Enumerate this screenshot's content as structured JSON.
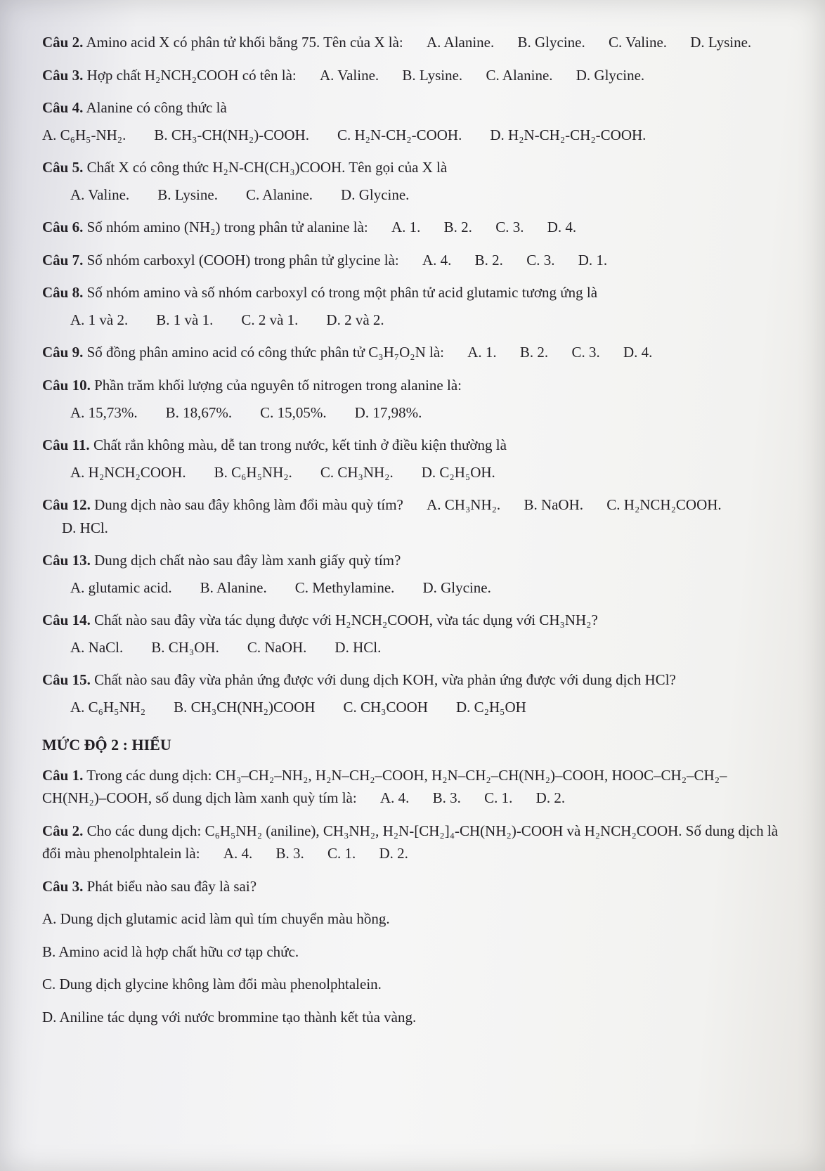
{
  "page": {
    "background_color": "#f6f6f6",
    "text_color": "#221f24",
    "font_family": "Times New Roman",
    "base_font_size_pt": 16
  },
  "q2": {
    "lead": "Câu 2.",
    "text": "Amino acid X có phân tử khối bằng 75. Tên của X là:",
    "A": "A. Alanine.",
    "B": "B. Glycine.",
    "C": "C. Valine.",
    "D": "D. Lysine."
  },
  "q3": {
    "lead": "Câu 3.",
    "text": "Hợp chất H₂NCH₂COOH có tên là:",
    "A": "A. Valine.",
    "B": "B. Lysine.",
    "C": "C. Alanine.",
    "D": "D. Glycine."
  },
  "q4": {
    "lead": "Câu 4.",
    "text": "Alanine có công thức là",
    "A": "A. C₆H₅-NH₂.",
    "B": "B. CH₃-CH(NH₂)-COOH.",
    "C": "C. H₂N-CH₂-COOH.",
    "D": "D. H₂N-CH₂-CH₂-COOH."
  },
  "q5": {
    "lead": "Câu 5.",
    "text": "Chất X có công thức H₂N-CH(CH₃)COOH. Tên gọi của X là",
    "A": "A. Valine.",
    "B": "B. Lysine.",
    "C": "C. Alanine.",
    "D": "D. Glycine."
  },
  "q6": {
    "lead": "Câu 6.",
    "text": "Số nhóm amino (NH₂) trong phân tử alanine là:",
    "A": "A. 1.",
    "B": "B. 2.",
    "C": "C. 3.",
    "D": "D. 4."
  },
  "q7": {
    "lead": "Câu 7.",
    "text": "Số nhóm carboxyl (COOH) trong phân tử glycine là:",
    "A": "A. 4.",
    "B": "B. 2.",
    "C": "C. 3.",
    "D": "D. 1."
  },
  "q8": {
    "lead": "Câu 8.",
    "text": "Số nhóm amino và số nhóm carboxyl có trong một phân tử acid glutamic tương ứng là",
    "A": "A. 1 và 2.",
    "B": "B. 1 và 1.",
    "C": "C. 2 và 1.",
    "D": "D. 2 và 2."
  },
  "q9": {
    "lead": "Câu 9.",
    "text": "Số đồng phân amino acid có công thức phân tử C₃H₇O₂N là:",
    "A": "A. 1.",
    "B": "B. 2.",
    "C": "C. 3.",
    "D": "D. 4."
  },
  "q10": {
    "lead": "Câu 10.",
    "text": "Phần trăm khối lượng của nguyên tố nitrogen trong alanine là:",
    "A": "A. 15,73%.",
    "B": "B. 18,67%.",
    "C": "C. 15,05%.",
    "D": "D. 17,98%."
  },
  "q11": {
    "lead": "Câu 11.",
    "text": "Chất rắn không màu, dễ tan trong nước, kết tinh ở điều kiện thường là",
    "A": "A. H₂NCH₂COOH.",
    "B": "B. C₆H₅NH₂.",
    "C": "C. CH₃NH₂.",
    "D": "D. C₂H₅OH."
  },
  "q12": {
    "lead": "Câu 12.",
    "text": "Dung dịch nào sau đây không làm đổi màu quỳ tím?",
    "A": "A. CH₃NH₂.",
    "B": "B. NaOH.",
    "C": "C. H₂NCH₂COOH.",
    "D": "D. HCl."
  },
  "q13": {
    "lead": "Câu 13.",
    "text": "Dung dịch chất nào sau đây làm xanh giấy quỳ tím?",
    "A": "A. glutamic acid.",
    "B": "B. Alanine.",
    "C": "C. Methylamine.",
    "D": "D. Glycine."
  },
  "q14": {
    "lead": "Câu 14.",
    "text": "Chất nào sau đây vừa tác dụng được với H₂NCH₂COOH, vừa tác dụng với CH₃NH₂?",
    "A": "A. NaCl.",
    "B": "B. CH₃OH.",
    "C": "C. NaOH.",
    "D": "D. HCl."
  },
  "q15": {
    "lead": "Câu 15.",
    "text": "Chất nào sau đây vừa phản ứng được với dung dịch KOH, vừa phản ứng được với dung dịch HCl?",
    "A": "A. C₆H₅NH₂",
    "B": "B. CH₃CH(NH₂)COOH",
    "C": "C. CH₃COOH",
    "D": "D. C₂H₅OH"
  },
  "section2": "MỨC ĐỘ 2 : HIỂU",
  "s2q1": {
    "lead": "Câu 1.",
    "text": "Trong các dung dịch: CH₃–CH₂–NH₂, H₂N–CH₂–COOH, H₂N–CH₂–CH(NH₂)–COOH, HOOC–CH₂–CH₂–CH(NH₂)–COOH, số dung dịch làm xanh quỳ tím là:",
    "A": "A. 4.",
    "B": "B. 3.",
    "C": "C. 1.",
    "D": "D. 2."
  },
  "s2q2": {
    "lead": "Câu 2.",
    "text": "Cho các dung dịch: C₆H₅NH₂ (aniline), CH₃NH₂, H₂N-[CH₂]₄-CH(NH₂)-COOH và H₂NCH₂COOH. Số dung dịch là đổi màu phenolphtalein là:",
    "A": "A. 4.",
    "B": "B. 3.",
    "C": "C. 1.",
    "D": "D. 2."
  },
  "s2q3": {
    "lead": "Câu 3.",
    "text": "Phát biểu nào sau đây là sai?",
    "A": "A. Dung dịch glutamic acid làm quì tím chuyển màu hồng.",
    "B": "B. Amino acid là hợp chất hữu cơ tạp chức.",
    "C": "C. Dung dịch glycine không làm đổi màu phenolphtalein.",
    "D": "D. Aniline tác dụng với nước brommine tạo thành kết tủa vàng."
  }
}
